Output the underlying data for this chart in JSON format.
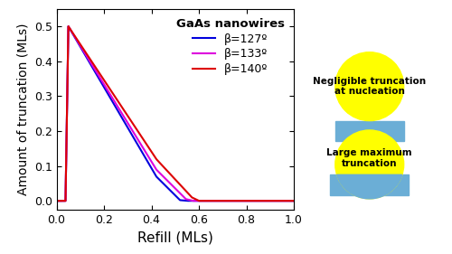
{
  "xlabel": "Refill (MLs)",
  "ylabel": "Amount of truncation (MLs)",
  "xlim": [
    0,
    1.0
  ],
  "ylim": [
    -0.025,
    0.55
  ],
  "yticks": [
    0.0,
    0.1,
    0.2,
    0.3,
    0.4,
    0.5
  ],
  "xticks": [
    0.0,
    0.2,
    0.4,
    0.6,
    0.8,
    1.0
  ],
  "legend_title": "GaAs nanowires",
  "curves": [
    {
      "label": "β=127º",
      "color": "#0000dd",
      "x": [
        0.0,
        0.038,
        0.05,
        0.42,
        0.52,
        0.55,
        1.0
      ],
      "y": [
        0.0,
        0.0,
        0.5,
        0.07,
        0.002,
        0.0,
        0.0
      ]
    },
    {
      "label": "β=133º",
      "color": "#dd00dd",
      "x": [
        0.0,
        0.038,
        0.05,
        0.42,
        0.545,
        0.575,
        1.0
      ],
      "y": [
        0.0,
        0.0,
        0.5,
        0.09,
        0.005,
        0.0,
        0.0
      ]
    },
    {
      "label": "β=140º",
      "color": "#dd0000",
      "x": [
        0.0,
        0.038,
        0.05,
        0.42,
        0.57,
        0.6,
        1.0
      ],
      "y": [
        0.0,
        0.0,
        0.5,
        0.12,
        0.01,
        0.0,
        0.0
      ]
    }
  ],
  "circle_color": "#ffff00",
  "rect_color": "#6baed6",
  "top_label": "Negligible truncation\nat nucleation",
  "bottom_label": "Large maximum\ntruncation"
}
